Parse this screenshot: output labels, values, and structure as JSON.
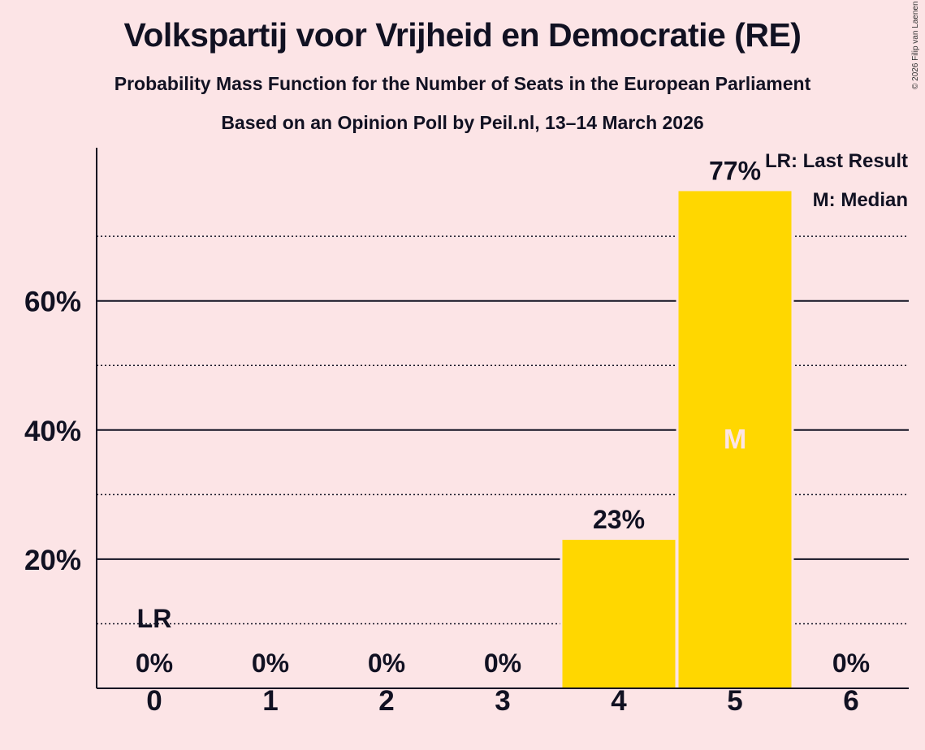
{
  "title": "Volkspartij voor Vrijheid en Democratie (RE)",
  "subtitle": "Probability Mass Function for the Number of Seats in the European Parliament",
  "subtitle2": "Based on an Opinion Poll by Peil.nl, 13–14 March 2026",
  "copyright": "© 2026 Filip van Laenen",
  "legend": {
    "last_result": "LR: Last Result",
    "median": "M: Median"
  },
  "colors": {
    "background": "#FCE4E6",
    "bar": "#FFD700",
    "median_marker": "#FCE4E6",
    "text": "#111122"
  },
  "chart_data": {
    "type": "bar",
    "categories": [
      "0",
      "1",
      "2",
      "3",
      "4",
      "5",
      "6"
    ],
    "values": [
      0,
      0,
      0,
      0,
      23,
      77,
      0
    ],
    "data_labels": [
      "0%",
      "0%",
      "0%",
      "0%",
      "23%",
      "77%",
      "0%"
    ],
    "last_result_seat": "0",
    "last_result_label": "LR",
    "median_seat": "5",
    "median_label": "M",
    "ylim": [
      0,
      84
    ],
    "yticks": [
      20,
      40,
      60
    ],
    "ytick_labels": [
      "20%",
      "40%",
      "60%"
    ],
    "minor_gridlines": [
      10,
      30,
      50,
      70
    ],
    "xlabel": "",
    "ylabel": ""
  }
}
